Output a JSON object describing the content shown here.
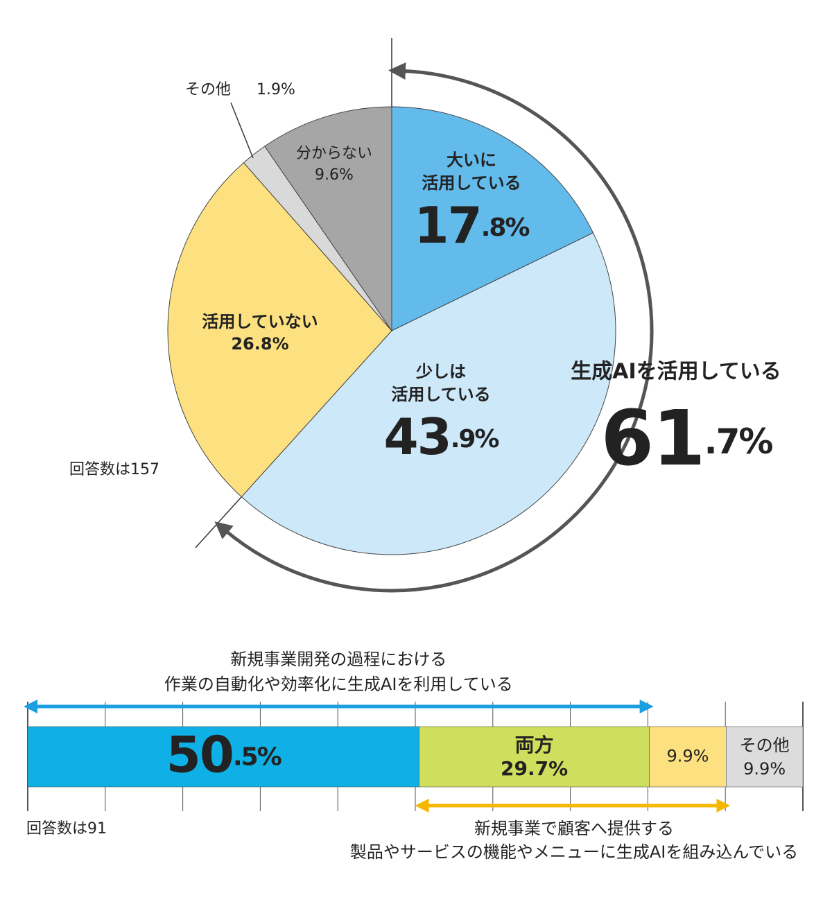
{
  "chart_data": [
    {
      "type": "pie",
      "categories": [
        [
          "大いに",
          "活用している"
        ],
        [
          "少しは",
          "活用している"
        ],
        [
          "活用していない"
        ],
        [
          "その他"
        ],
        [
          "分からない"
        ]
      ],
      "values": [
        17.8,
        43.9,
        26.8,
        1.9,
        9.6
      ],
      "value_labels": [
        "17.8%",
        "43.9%",
        "26.8%",
        "1.9%",
        "9.6%"
      ],
      "colors": [
        "#62bbea",
        "#cde8f8",
        "#fde080",
        "#d9d9d9",
        "#a6a6a6"
      ],
      "annotation": [
        "生成AIを活用している",
        "61.7%"
      ],
      "note": "回答数は157"
    },
    {
      "type": "stacked_bar",
      "series": [
        {
          "name": null,
          "color": "#0fb0e6",
          "values": [
            50.5
          ],
          "value_labels": [
            "50.5%"
          ]
        },
        {
          "name": "両方",
          "color": "#cfde5c",
          "values": [
            29.7
          ],
          "value_labels": [
            "29.7%"
          ]
        },
        {
          "name": null,
          "color": "#fde080",
          "values": [
            9.9
          ],
          "value_labels": [
            "9.9%"
          ]
        },
        {
          "name": "その他",
          "color": "#dcdcdc",
          "values": [
            9.9
          ],
          "value_labels": [
            "9.9%"
          ]
        }
      ],
      "xlim": [
        0,
        100
      ],
      "xticks": [
        0,
        10,
        20,
        30,
        40,
        50,
        60,
        70,
        80,
        90,
        100
      ],
      "top_annotation": [
        "新規事業開発の過程における",
        "作業の自動化や効率化に生成AIを利用している"
      ],
      "bottom_annotation": [
        "新規事業で顧客へ提供する",
        "製品やサービスの機能やメニューに生成AIを組み込んでいる"
      ],
      "note": "回答数は91"
    }
  ]
}
